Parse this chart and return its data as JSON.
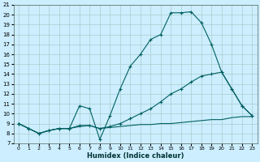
{
  "xlabel": "Humidex (Indice chaleur)",
  "bg_color": "#cceeff",
  "grid_color": "#aacccc",
  "line_color": "#006060",
  "xlim": [
    -0.5,
    23.5
  ],
  "ylim": [
    7,
    21
  ],
  "xticks": [
    0,
    1,
    2,
    3,
    4,
    5,
    6,
    7,
    8,
    9,
    10,
    11,
    12,
    13,
    14,
    15,
    16,
    17,
    18,
    19,
    20,
    21,
    22,
    23
  ],
  "yticks": [
    7,
    8,
    9,
    10,
    11,
    12,
    13,
    14,
    15,
    16,
    17,
    18,
    19,
    20,
    21
  ],
  "line1_x": [
    0,
    1,
    2,
    3,
    4,
    5,
    6,
    7,
    8,
    9,
    10,
    11,
    12,
    13,
    14,
    15,
    16,
    17,
    18,
    19,
    20,
    21,
    22,
    23
  ],
  "line1_y": [
    9.0,
    8.5,
    8.0,
    8.3,
    8.5,
    8.5,
    10.8,
    10.5,
    7.4,
    9.8,
    12.5,
    14.8,
    16.0,
    17.5,
    18.0,
    20.2,
    20.2,
    20.3,
    19.2,
    17.0,
    14.2,
    12.5,
    10.8,
    9.8
  ],
  "line2_x": [
    0,
    1,
    2,
    3,
    4,
    5,
    6,
    7,
    8,
    9,
    10,
    11,
    12,
    13,
    14,
    15,
    16,
    17,
    18,
    19,
    20,
    21,
    22,
    23
  ],
  "line2_y": [
    9.0,
    8.5,
    8.0,
    8.3,
    8.5,
    8.5,
    8.8,
    8.8,
    8.5,
    8.7,
    9.0,
    9.5,
    10.0,
    10.5,
    11.2,
    12.0,
    12.5,
    13.2,
    13.8,
    14.0,
    14.2,
    12.5,
    10.8,
    9.8
  ],
  "line3_x": [
    0,
    1,
    2,
    3,
    4,
    5,
    6,
    7,
    8,
    9,
    10,
    11,
    12,
    13,
    14,
    15,
    16,
    17,
    18,
    19,
    20,
    21,
    22,
    23
  ],
  "line3_y": [
    9.0,
    8.5,
    8.0,
    8.3,
    8.5,
    8.5,
    8.7,
    8.8,
    8.5,
    8.6,
    8.7,
    8.8,
    8.9,
    8.9,
    9.0,
    9.0,
    9.1,
    9.2,
    9.3,
    9.4,
    9.4,
    9.6,
    9.7,
    9.7
  ]
}
